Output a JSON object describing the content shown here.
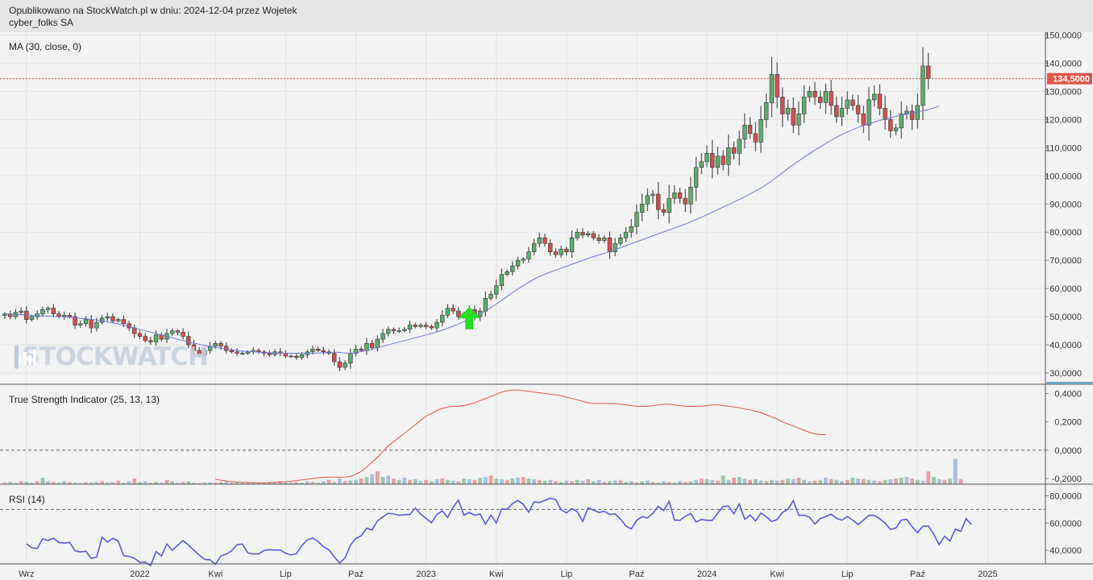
{
  "header": {
    "published": "Opublikowano na StockWatch.pl w dniu: 2024-12-04 przez Wojetek",
    "ticker": "cyber_folks SA"
  },
  "watermark": "STOCKWATCH",
  "colors": {
    "up": "#5cad6f",
    "down": "#d25050",
    "ma": "#6f79d4",
    "tsi": "#e0564a",
    "rsi": "#5a5ae0",
    "arrow": "#22e022",
    "price_tag": "#e0564a"
  },
  "chart_data": [
    {
      "type": "candlestick",
      "panel": "price",
      "title": "",
      "indicator_label": "MA (30, close, 0)",
      "current_price": 134.5,
      "current_price_label": "134,5000",
      "ylim": [
        26,
        151
      ],
      "y_ticks": [
        30,
        40,
        50,
        60,
        70,
        80,
        90,
        100,
        110,
        120,
        130,
        140,
        150
      ],
      "y_tick_labels": [
        "30,0000",
        "40,0000",
        "50,0000",
        "60,0000",
        "70,0000",
        "80,0000",
        "90,0000",
        "100,0000",
        "110,0000",
        "120,0000",
        "130,0000",
        "140,0000",
        "150,0000"
      ],
      "x_ticks": [
        "Wrz",
        "2022",
        "Kwi",
        "Lip",
        "Paź",
        "2023",
        "Kwi",
        "Lip",
        "Paź",
        "2024",
        "Kwi",
        "Lip",
        "Paź",
        "2025"
      ],
      "x_tick_weeks": [
        4,
        25,
        39,
        52,
        65,
        78,
        91,
        104,
        117,
        130,
        143,
        156,
        169,
        182
      ],
      "close": [
        51.0,
        50.0,
        51.5,
        52.0,
        49.0,
        50.0,
        51.0,
        52.5,
        53.0,
        51.0,
        50.0,
        50.5,
        50.0,
        47.0,
        47.5,
        49.0,
        46.0,
        48.0,
        49.5,
        50.0,
        48.5,
        49.0,
        47.5,
        46.0,
        44.0,
        43.0,
        41.5,
        41.0,
        43.5,
        42.0,
        44.0,
        45.0,
        44.5,
        43.0,
        40.0,
        38.0,
        36.5,
        38.0,
        39.5,
        40.5,
        39.5,
        38.0,
        37.5,
        37.0,
        37.0,
        37.5,
        38.0,
        37.5,
        37.0,
        36.5,
        37.5,
        37.0,
        36.0,
        36.0,
        35.5,
        36.5,
        37.5,
        38.5,
        38.0,
        37.5,
        37.0,
        34.0,
        32.0,
        33.5,
        37.0,
        38.5,
        38.0,
        40.5,
        39.0,
        42.0,
        44.0,
        45.5,
        45.0,
        45.0,
        45.5,
        47.0,
        46.5,
        47.0,
        46.5,
        46.0,
        48.0,
        50.5,
        53.0,
        52.0,
        50.0,
        51.0,
        52.5,
        50.0,
        52.0,
        56.5,
        58.0,
        61.0,
        65.0,
        66.0,
        68.0,
        70.0,
        70.5,
        73.0,
        76.0,
        78.0,
        76.0,
        73.0,
        72.0,
        74.0,
        73.0,
        78.0,
        80.0,
        79.0,
        79.5,
        78.0,
        77.0,
        78.0,
        73.0,
        76.0,
        78.0,
        80.0,
        82.0,
        87.0,
        90.0,
        93.0,
        93.5,
        88.0,
        87.0,
        92.0,
        94.0,
        92.0,
        90.0,
        96.0,
        103.0,
        105.0,
        108.0,
        103.0,
        107.0,
        104.0,
        110.0,
        108.0,
        113.0,
        118.0,
        115.0,
        112.0,
        120.0,
        126.0,
        136.0,
        128.0,
        122.0,
        124.0,
        118.0,
        122.0,
        128.0,
        130.0,
        128.0,
        126.0,
        130.0,
        125.0,
        121.0,
        124.0,
        127.0,
        125.0,
        122.0,
        118.0,
        127.0,
        129.0,
        124.0,
        120.0,
        116.0,
        117.0,
        122.0,
        123.0,
        120.0,
        125.0,
        139.0,
        134.5
      ],
      "ma": [
        51.0,
        50.9,
        50.8,
        50.7,
        50.6,
        50.5,
        50.4,
        50.3,
        50.2,
        50.1,
        50.0,
        49.9,
        49.8,
        49.6,
        49.4,
        49.3,
        49.0,
        48.8,
        48.5,
        48.2,
        47.8,
        47.4,
        46.9,
        46.5,
        46.0,
        45.5,
        45.0,
        44.5,
        44.0,
        43.5,
        43.0,
        42.5,
        42.0,
        41.5,
        41.0,
        40.6,
        40.2,
        39.8,
        39.4,
        39.1,
        38.8,
        38.5,
        38.2,
        38.0,
        37.8,
        37.6,
        37.5,
        37.4,
        37.3,
        37.2,
        37.1,
        37.0,
        37.0,
        37.0,
        37.0,
        37.0,
        37.0,
        37.0,
        37.1,
        37.2,
        37.3,
        37.4,
        37.3,
        37.1,
        37.0,
        37.2,
        37.6,
        38.0,
        38.5,
        39.0,
        39.5,
        40.0,
        40.5,
        41.0,
        41.5,
        42.0,
        42.5,
        43.0,
        43.5,
        44.0,
        44.6,
        45.2,
        45.9,
        46.6,
        47.4,
        48.2,
        49.1,
        50.0,
        51.0,
        52.0,
        53.2,
        54.5,
        55.8,
        57.2,
        58.5,
        59.8,
        61.0,
        62.2,
        63.3,
        64.3,
        65.1,
        65.8,
        66.5,
        67.2,
        67.9,
        68.6,
        69.3,
        70.0,
        70.7,
        71.3,
        71.9,
        72.5,
        73.1,
        73.8,
        74.5,
        75.2,
        75.9,
        76.6,
        77.3,
        78.0,
        78.7,
        79.4,
        80.1,
        80.8,
        81.5,
        82.2,
        82.9,
        83.7,
        84.5,
        85.3,
        86.2,
        87.1,
        88.0,
        88.9,
        89.8,
        90.7,
        91.6,
        92.6,
        93.6,
        94.6,
        95.7,
        96.9,
        98.2,
        99.6,
        101.1,
        102.6,
        104.0,
        105.3,
        106.6,
        107.9,
        109.1,
        110.3,
        111.5,
        112.6,
        113.7,
        114.7,
        115.6,
        116.4,
        117.2,
        117.9,
        118.5,
        119.1,
        119.7,
        120.2,
        120.7,
        121.1,
        121.5,
        121.9,
        122.3,
        122.7,
        123.1,
        123.5,
        124.1,
        124.8
      ],
      "up_arrow_week": 86
    },
    {
      "type": "line",
      "panel": "tsi",
      "indicator_label": "True Strength Indicator (25, 13, 13)",
      "ylim": [
        -0.24,
        0.46
      ],
      "y_ticks": [
        -0.2,
        0.0,
        0.2,
        0.4
      ],
      "y_tick_labels": [
        "-0,2000",
        "0,0000",
        "0,2000",
        "0,4000"
      ],
      "reference_line": 0.0,
      "series": [
        {
          "start_week": 39,
          "values": [
            -0.205,
            -0.212,
            -0.218,
            -0.222,
            -0.225,
            -0.227,
            -0.228,
            -0.229,
            -0.23,
            -0.23,
            -0.229,
            -0.227,
            -0.225,
            -0.223,
            -0.22,
            -0.215,
            -0.21,
            -0.205,
            -0.2,
            -0.195,
            -0.192,
            -0.19,
            -0.19,
            -0.191,
            -0.19,
            -0.185,
            -0.17,
            -0.15,
            -0.12,
            -0.085,
            -0.05,
            -0.01,
            0.03,
            0.06,
            0.09,
            0.12,
            0.15,
            0.18,
            0.21,
            0.24,
            0.26,
            0.28,
            0.295,
            0.305,
            0.31,
            0.31,
            0.315,
            0.325,
            0.335,
            0.35,
            0.365,
            0.38,
            0.395,
            0.41,
            0.42,
            0.425,
            0.425,
            0.42,
            0.415,
            0.41,
            0.405,
            0.4,
            0.395,
            0.39,
            0.385,
            0.375,
            0.365,
            0.355,
            0.345,
            0.335,
            0.33,
            0.33,
            0.33,
            0.33,
            0.33,
            0.325,
            0.32,
            0.315,
            0.31,
            0.31,
            0.31,
            0.315,
            0.32,
            0.325,
            0.325,
            0.32,
            0.315,
            0.31,
            0.31,
            0.31,
            0.31,
            0.315,
            0.32,
            0.32,
            0.315,
            0.31,
            0.305,
            0.3,
            0.29,
            0.285,
            0.275,
            0.265,
            0.25,
            0.235,
            0.22,
            0.2,
            0.185,
            0.17,
            0.155,
            0.14,
            0.125,
            0.115,
            0.11,
            0.11
          ]
        }
      ],
      "histogram": [
        0.01,
        0.015,
        0.01,
        0.02,
        0.015,
        0.01,
        0.02,
        0.045,
        0.02,
        0.015,
        0.01,
        0.02,
        0.015,
        0.01,
        0.008,
        0.012,
        0.01,
        0.015,
        0.02,
        0.01,
        0.015,
        0.025,
        0.01,
        0.02,
        0.04,
        0.015,
        0.02,
        0.01,
        0.015,
        0.012,
        0.03,
        0.02,
        0.01,
        0.015,
        0.02,
        0.01,
        0.008,
        0.01,
        0.012,
        0.01,
        0.015,
        0.02,
        0.01,
        0.015,
        0.01,
        0.012,
        0.01,
        0.008,
        0.01,
        0.015,
        0.01,
        0.02,
        0.012,
        0.01,
        0.015,
        0.01,
        0.02,
        0.015,
        0.01,
        0.02,
        0.03,
        0.015,
        0.04,
        0.02,
        0.025,
        0.03,
        0.04,
        0.05,
        0.07,
        0.09,
        0.05,
        0.06,
        0.04,
        0.03,
        0.045,
        0.03,
        0.035,
        0.025,
        0.03,
        0.02,
        0.035,
        0.04,
        0.03,
        0.025,
        0.02,
        0.04,
        0.035,
        0.03,
        0.045,
        0.05,
        0.06,
        0.04,
        0.035,
        0.03,
        0.04,
        0.045,
        0.05,
        0.04,
        0.035,
        0.03,
        0.025,
        0.03,
        0.02,
        0.015,
        0.025,
        0.02,
        0.03,
        0.025,
        0.035,
        0.02,
        0.03,
        0.015,
        0.02,
        0.025,
        0.03,
        0.015,
        0.02,
        0.01,
        0.02,
        0.025,
        0.015,
        0.01,
        0.02,
        0.015,
        0.01,
        0.02,
        0.015,
        0.02,
        0.03,
        0.04,
        0.035,
        0.03,
        0.025,
        0.06,
        0.03,
        0.045,
        0.05,
        0.04,
        0.03,
        0.035,
        0.025,
        0.02,
        0.03,
        0.025,
        0.03,
        0.04,
        0.035,
        0.045,
        0.03,
        0.02,
        0.025,
        0.03,
        0.045,
        0.035,
        0.03,
        0.02,
        0.03,
        0.045,
        0.04,
        0.035,
        0.03,
        0.025,
        0.02,
        0.03,
        0.035,
        0.04,
        0.045,
        0.05,
        0.04,
        0.03,
        0.025,
        0.09,
        0.05,
        0.035,
        0.03,
        0.04,
        0.18,
        0.035
      ]
    },
    {
      "type": "line",
      "panel": "rsi",
      "indicator_label": "RSI (14)",
      "ylim": [
        30,
        88
      ],
      "y_ticks": [
        40,
        60,
        80
      ],
      "y_tick_labels": [
        "40,0000",
        "60,0000",
        "80,0000"
      ],
      "reference_lines": [
        30,
        70
      ],
      "series": [
        {
          "start_week": 4,
          "values": [
            44.7,
            41.8,
            41.3,
            48.4,
            47.2,
            48.9,
            45.8,
            45.3,
            45.8,
            39.6,
            38.8,
            39.3,
            34.1,
            35.0,
            49.6,
            46.0,
            48.8,
            46.8,
            36.0,
            35.5,
            34.1,
            31.1,
            31.3,
            28.8,
            39.1,
            35.8,
            44.6,
            40.0,
            43.7,
            47.1,
            43.8,
            40.0,
            36.5,
            33.3,
            33.0,
            29.7,
            35.8,
            37.2,
            39.6,
            44.1,
            44.6,
            38.0,
            37.3,
            37.3,
            39.9,
            40.4,
            40.2,
            40.2,
            37.8,
            36.6,
            37.5,
            43.6,
            47.5,
            49.0,
            46.5,
            42.6,
            40.3,
            35.2,
            30.6,
            34.4,
            43.8,
            48.8,
            50.7,
            56.2,
            55.0,
            61.6,
            64.5,
            67.2,
            66.7,
            65.8,
            66.1,
            66.3,
            71.0,
            66.5,
            63.4,
            60.2,
            66.3,
            68.9,
            64.1,
            71.7,
            76.9,
            65.8,
            67.7,
            65.8,
            66.6,
            59.2,
            65.9,
            60.1,
            70.4,
            70.1,
            74.3,
            76.6,
            73.8,
            68.0,
            75.5,
            75.1,
            76.6,
            78.3,
            77.3,
            69.8,
            67.5,
            70.6,
            68.3,
            61.2,
            71.2,
            69.5,
            67.8,
            68.6,
            66.4,
            66.8,
            62.9,
            57.9,
            55.7,
            62.0,
            64.7,
            63.7,
            67.2,
            72.3,
            69.2,
            76.0,
            62.2,
            62.0,
            64.9,
            67.0,
            60.8,
            62.6,
            62.0,
            62.0,
            67.2,
            72.2,
            72.4,
            66.7,
            74.0,
            62.8,
            65.9,
            61.6,
            67.3,
            64.7,
            61.1,
            62.6,
            67.8,
            70.1,
            76.5,
            65.6,
            65.8,
            64.3,
            59.3,
            63.3,
            64.8,
            66.6,
            63.4,
            62.1,
            64.8,
            62.2,
            58.9,
            62.1,
            65.7,
            65.6,
            63.1,
            60.0,
            55.3,
            56.4,
            62.2,
            62.7,
            57.3,
            52.9,
            57.8,
            57.8,
            51.8,
            44.1,
            50.3,
            46.8,
            55.5,
            53.8,
            63.2,
            58.9
          ]
        }
      ]
    }
  ]
}
